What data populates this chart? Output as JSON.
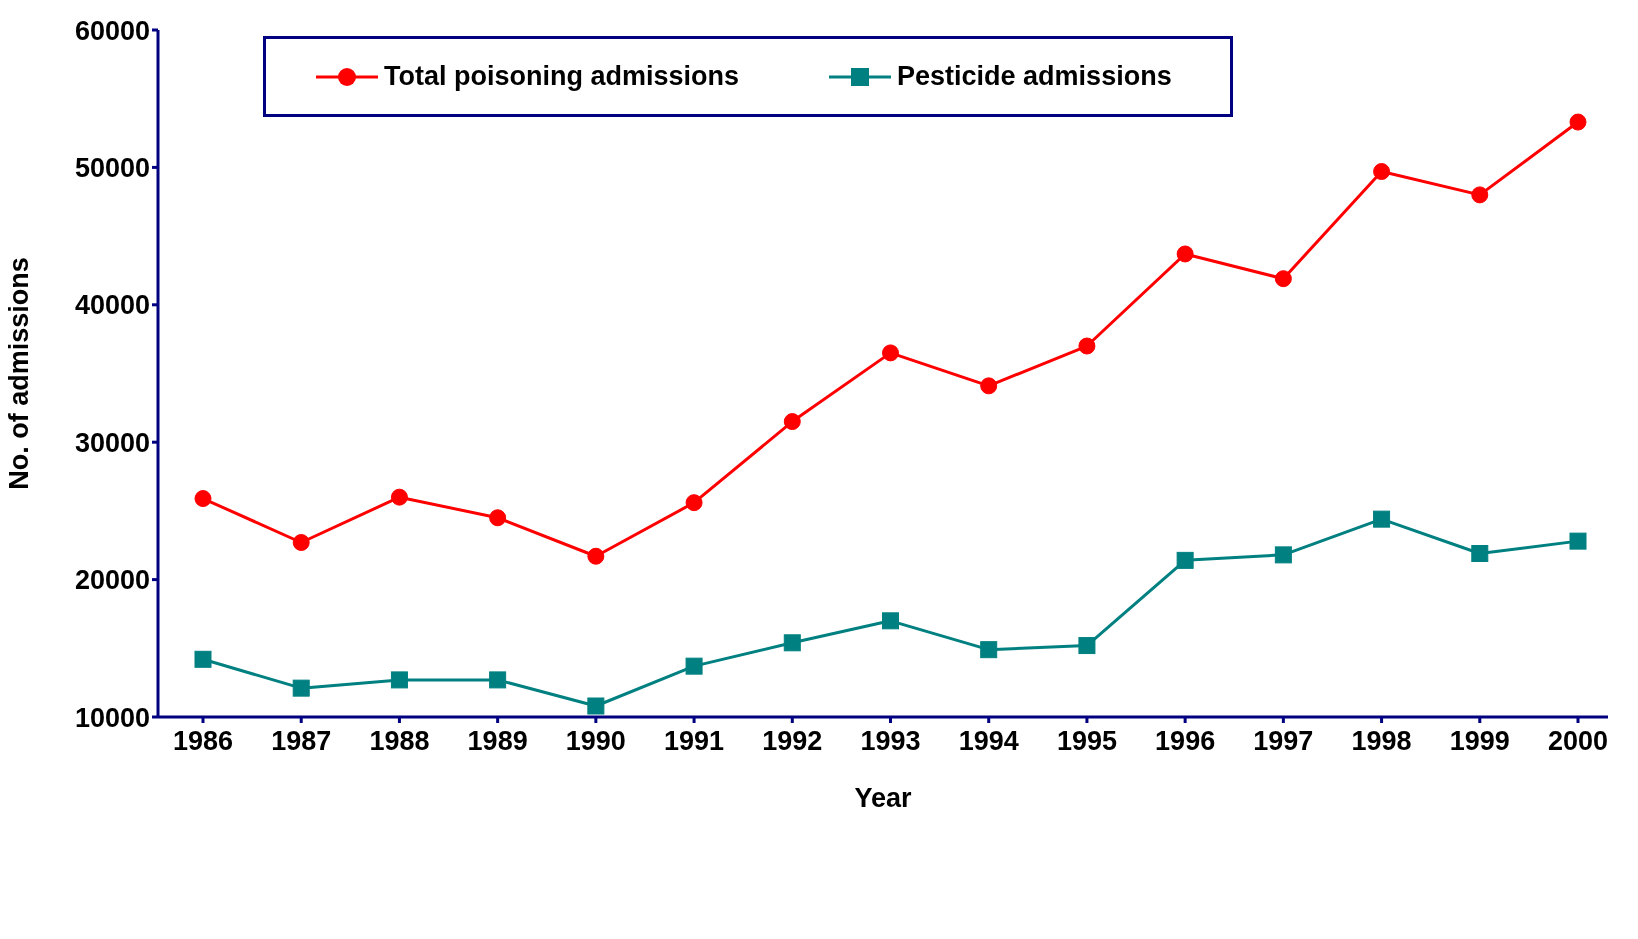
{
  "chart_data": {
    "type": "line",
    "xlabel": "Year",
    "ylabel": "No. of admissions",
    "categories": [
      "1986",
      "1987",
      "1988",
      "1989",
      "1990",
      "1991",
      "1992",
      "1993",
      "1994",
      "1995",
      "1996",
      "1997",
      "1998",
      "1999",
      "2000"
    ],
    "series": [
      {
        "name": "Total poisoning admissions",
        "color": "#ff0000",
        "marker": "circle",
        "values": [
          25900,
          22700,
          26000,
          24500,
          21700,
          25600,
          31500,
          36500,
          34100,
          37000,
          43700,
          41900,
          49700,
          48000,
          53300
        ]
      },
      {
        "name": "Pesticide admissions",
        "color": "#008080",
        "marker": "square",
        "values": [
          14200,
          12100,
          12700,
          12700,
          10800,
          13700,
          15400,
          17000,
          14900,
          15200,
          21400,
          21800,
          24400,
          21900,
          22800
        ]
      }
    ],
    "ylim": [
      10000,
      60000
    ],
    "yticks": [
      10000,
      20000,
      30000,
      40000,
      50000,
      60000
    ],
    "grid": false,
    "legend": "top"
  }
}
